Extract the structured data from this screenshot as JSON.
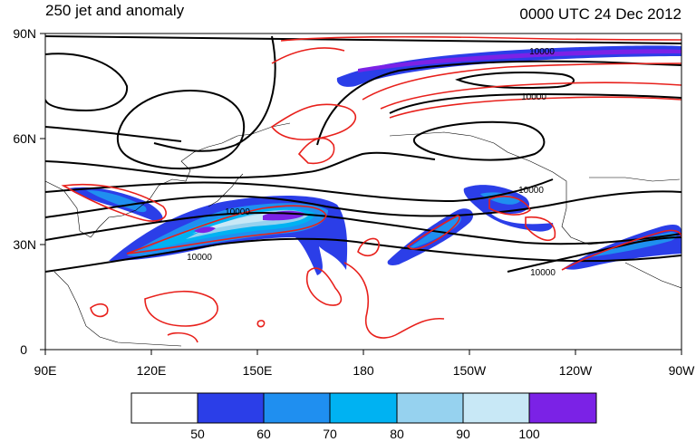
{
  "title_left": "250 jet and anomaly",
  "title_right": "0000 UTC 24 Dec 2012",
  "lat_labels": [
    "90N",
    "60N",
    "30N",
    "0"
  ],
  "lon_labels": [
    "90E",
    "120E",
    "150E",
    "180",
    "150W",
    "120W",
    "90W"
  ],
  "contour_labels": [
    "10000",
    "10000",
    "10000",
    "10000",
    "10000",
    "10000"
  ],
  "colorbar": {
    "colors": [
      "#ffffff",
      "#2b3ee8",
      "#1f8ff0",
      "#00b2f2",
      "#96d2ef",
      "#c8e8f6",
      "#7b22e6"
    ],
    "labels": [
      "50",
      "60",
      "70",
      "80",
      "90",
      "100"
    ]
  }
}
